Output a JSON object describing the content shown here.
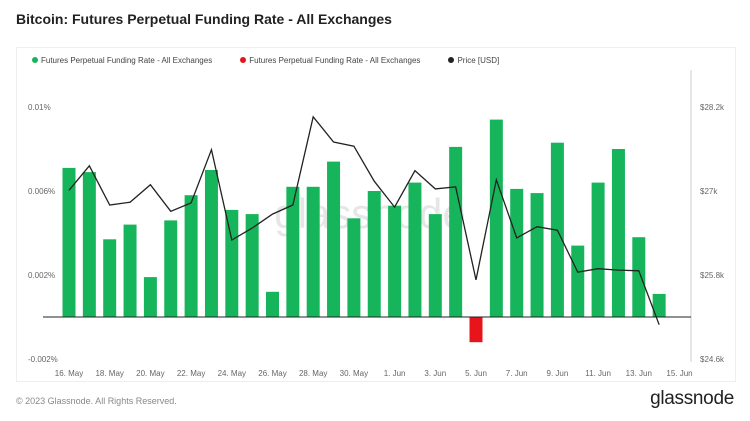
{
  "title": "Bitcoin: Futures Perpetual Funding Rate - All Exchanges",
  "footer": "© 2023 Glassnode. All Rights Reserved.",
  "brand": "glassnode",
  "watermark": "glassnode",
  "chart_data": {
    "type": "bar",
    "legend_placement": "top-left",
    "legend": [
      {
        "label": "Futures Perpetual Funding Rate - All Exchanges",
        "color": "#17b55b"
      },
      {
        "label": "Futures Perpetual Funding Rate - All Exchanges",
        "color": "#e8141b"
      },
      {
        "label": "Price [USD]",
        "color": "#222222"
      }
    ],
    "x": [
      "16 May",
      "17 May",
      "18 May",
      "19 May",
      "20 May",
      "21 May",
      "22 May",
      "23 May",
      "24 May",
      "25 May",
      "26 May",
      "27 May",
      "28 May",
      "29 May",
      "30 May",
      "31 May",
      "1 Jun",
      "2 Jun",
      "3 Jun",
      "4 Jun",
      "5 Jun",
      "6 Jun",
      "7 Jun",
      "8 Jun",
      "9 Jun",
      "10 Jun",
      "11 Jun",
      "12 Jun",
      "13 Jun",
      "14 Jun"
    ],
    "x_tick_labels": [
      "16. May",
      "18. May",
      "20. May",
      "22. May",
      "24. May",
      "26. May",
      "28. May",
      "30. May",
      "1. Jun",
      "3. Jun",
      "5. Jun",
      "7. Jun",
      "9. Jun",
      "11. Jun",
      "13. Jun",
      "15. Jun"
    ],
    "series": [
      {
        "type": "bar",
        "axis": "left",
        "values": [
          0.0071,
          0.0069,
          0.0037,
          0.0044,
          0.0019,
          0.0046,
          0.0058,
          0.007,
          0.0051,
          0.0049,
          0.0012,
          0.0062,
          0.0062,
          0.0074,
          0.0047,
          0.006,
          0.0053,
          0.0064,
          0.0049,
          0.0081,
          -0.0012,
          0.0094,
          0.0061,
          0.0059,
          0.0083,
          0.0034,
          0.0064,
          0.008,
          0.0038,
          0.0011
        ]
      },
      {
        "type": "line",
        "name": "Price [USD]",
        "axis": "right",
        "values": [
          27010,
          27360,
          26800,
          26840,
          27090,
          26710,
          26830,
          27590,
          26300,
          26470,
          26670,
          26800,
          28060,
          27700,
          27640,
          27140,
          26770,
          27290,
          27030,
          27060,
          25730,
          27160,
          26330,
          26490,
          26440,
          25840,
          25890,
          25870,
          25860,
          25090
        ]
      }
    ],
    "positive_color": "#17b55b",
    "negative_color": "#e8141b",
    "y_left": {
      "ticks": [
        -0.002,
        0.002,
        0.006,
        0.01
      ],
      "tick_labels": [
        "-0.002%",
        "0.002%",
        "0.006%",
        "0.01%"
      ],
      "range": [
        -0.0028,
        0.0105
      ]
    },
    "y_right": {
      "ticks": [
        24600,
        25800,
        27000,
        28200
      ],
      "tick_labels": [
        "$24.6k",
        "$25.8k",
        "$27k",
        "$28.2k"
      ],
      "range": [
        24600,
        28500
      ]
    },
    "grid": false
  }
}
